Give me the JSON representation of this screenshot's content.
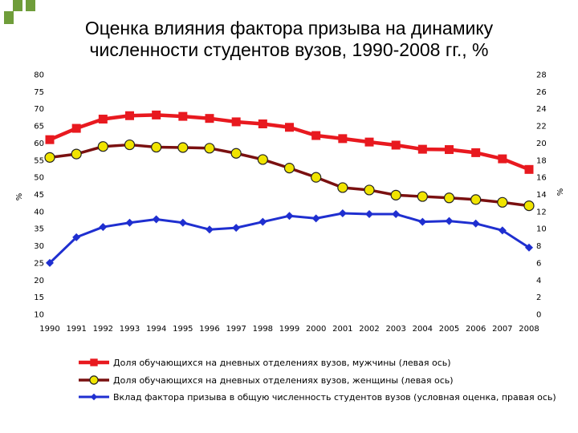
{
  "title": {
    "line1": "Оценка влияния фактора призыва на динамику",
    "line2": "численности студентов вузов, 1990-2008 гг., %"
  },
  "colors": {
    "logo_square": "#6f9d3a",
    "series_men": "#e8191f",
    "series_women": "#7a1010",
    "series_women_marker": "#f0e400",
    "series_army": "#1f2fd0"
  },
  "chart_data": {
    "type": "line",
    "title": "Оценка влияния фактора призыва на динамику численности студентов вузов, 1990-2008 гг., %",
    "x": [
      "1990",
      "1991",
      "1992",
      "1993",
      "1994",
      "1995",
      "1996",
      "1997",
      "1998",
      "1999",
      "2000",
      "2001",
      "2002",
      "2003",
      "2004",
      "2005",
      "2006",
      "2007",
      "2008"
    ],
    "y_left": {
      "label": "%",
      "min": 10,
      "max": 80,
      "step": 5
    },
    "y_right": {
      "label": "%",
      "min": 0,
      "max": 28,
      "step": 2
    },
    "grid": false,
    "legend_position": "bottom",
    "series": [
      {
        "name": "Доля обучающихся на дневных отделениях вузов, мужчины (левая ось)",
        "axis": "left",
        "marker": "square",
        "values": [
          61,
          64.3,
          67,
          68,
          68.2,
          67.8,
          67.2,
          66.2,
          65.6,
          64.6,
          62.2,
          61.3,
          60.3,
          59.4,
          58.2,
          58.1,
          57.2,
          55.4,
          52.3
        ]
      },
      {
        "name": "Доля обучающихся на дневных отделениях вузов, женщины (левая ось)",
        "axis": "left",
        "marker": "circle",
        "values": [
          55.8,
          56.8,
          59,
          59.5,
          58.8,
          58.7,
          58.5,
          57,
          55.2,
          52.7,
          50,
          47,
          46.3,
          44.8,
          44.4,
          44,
          43.5,
          42.7,
          41.7
        ]
      },
      {
        "name": "Вклад фактора призыва в общую численность студентов вузов (условная оценка, правая ось)",
        "axis": "right",
        "marker": "diamond",
        "values": [
          6,
          9,
          10.2,
          10.7,
          11.1,
          10.7,
          9.9,
          10.1,
          10.8,
          11.5,
          11.2,
          11.8,
          11.7,
          11.7,
          10.8,
          10.9,
          10.6,
          9.8,
          7.8
        ]
      }
    ]
  }
}
